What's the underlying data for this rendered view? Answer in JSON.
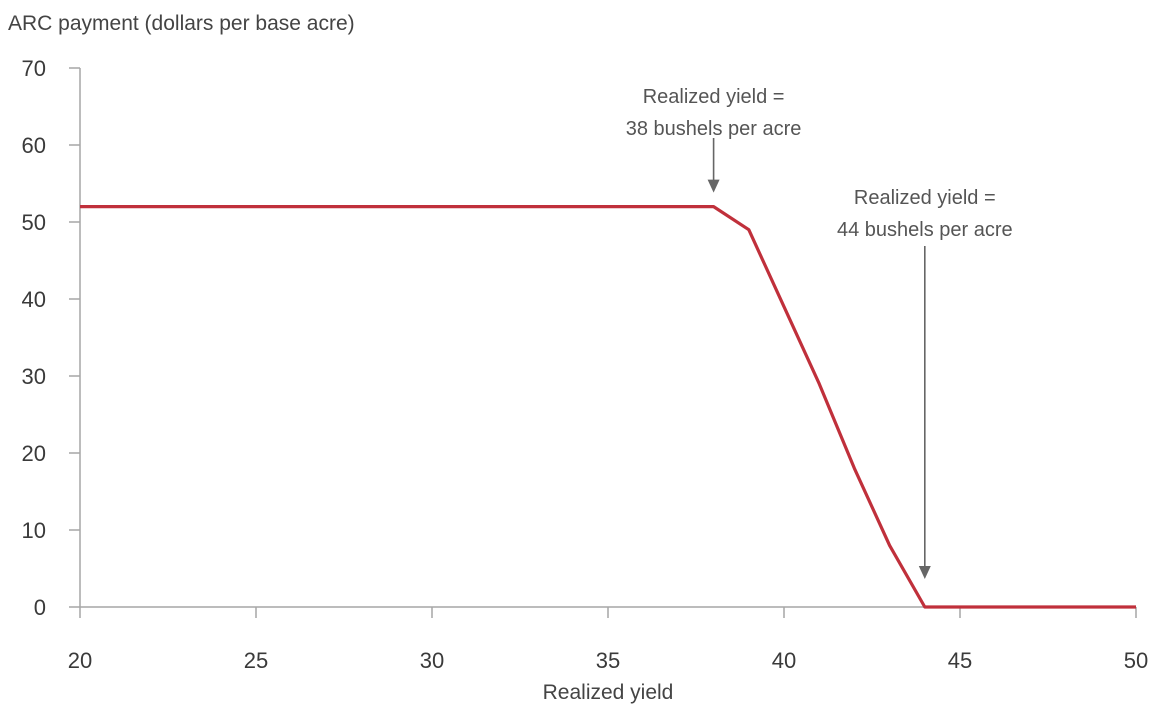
{
  "chart_data": {
    "type": "line",
    "title": "",
    "ylabel": "ARC payment (dollars per base acre)",
    "xlabel": "Realized yield",
    "xlim": [
      20,
      50
    ],
    "ylim": [
      0,
      70
    ],
    "x_ticks": [
      20,
      25,
      30,
      35,
      40,
      45,
      50
    ],
    "y_ticks": [
      0,
      10,
      20,
      30,
      40,
      50,
      60,
      70
    ],
    "grid": false,
    "series": [
      {
        "color": "#c0303b",
        "points": [
          {
            "x": 20,
            "y": 52
          },
          {
            "x": 38,
            "y": 52
          },
          {
            "x": 39,
            "y": 49
          },
          {
            "x": 40,
            "y": 39
          },
          {
            "x": 41,
            "y": 29
          },
          {
            "x": 42,
            "y": 18
          },
          {
            "x": 43,
            "y": 8
          },
          {
            "x": 44,
            "y": 0
          },
          {
            "x": 50,
            "y": 0
          }
        ]
      }
    ],
    "annotations": [
      {
        "lines": [
          "Realized yield =",
          "38 bushels per acre"
        ],
        "x": 38,
        "y": 52
      },
      {
        "lines": [
          "Realized yield =",
          "44 bushels per acre"
        ],
        "x": 44,
        "y": 0
      }
    ]
  },
  "colors": {
    "axis": "#a6a6a6",
    "arrow": "#666666"
  }
}
